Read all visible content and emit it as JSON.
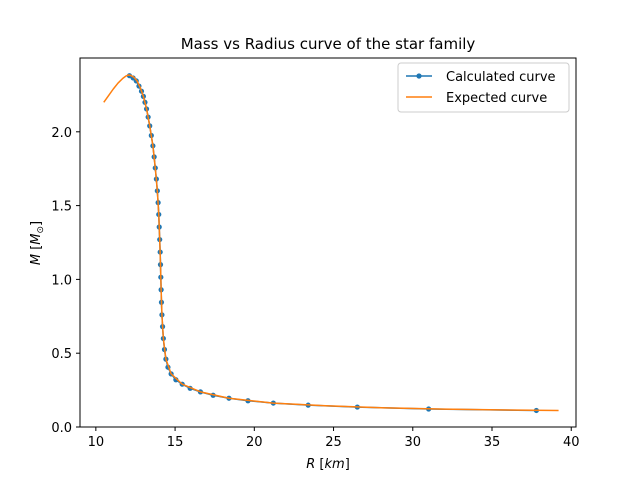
{
  "chart_data": {
    "type": "line",
    "title": "Mass vs Radius curve of the star family",
    "xlabel": "R [km]",
    "xlabel_parts": {
      "var": "R",
      "unit": "km"
    },
    "ylabel": "M [M⊙]",
    "ylabel_parts": {
      "var": "M",
      "unit": "M",
      "sub": "⊙"
    },
    "xlim": [
      9.0,
      40.3
    ],
    "ylim": [
      0.0,
      2.5
    ],
    "xticks": [
      10,
      15,
      20,
      25,
      30,
      35,
      40
    ],
    "yticks": [
      0.0,
      0.5,
      1.0,
      1.5,
      2.0
    ],
    "xtick_labels": [
      "10",
      "15",
      "20",
      "25",
      "30",
      "35",
      "40"
    ],
    "ytick_labels": [
      "0.0",
      "0.5",
      "1.0",
      "1.5",
      "2.0"
    ],
    "grid": false,
    "legend_position": "top-right",
    "series": [
      {
        "name": "Calculated curve",
        "color": "#1f77b4",
        "marker": "circle",
        "points": [
          [
            12.12,
            2.38
          ],
          [
            12.35,
            2.365
          ],
          [
            12.55,
            2.345
          ],
          [
            12.72,
            2.31
          ],
          [
            12.88,
            2.275
          ],
          [
            13.0,
            2.24
          ],
          [
            13.1,
            2.2
          ],
          [
            13.2,
            2.155
          ],
          [
            13.3,
            2.1
          ],
          [
            13.4,
            2.04
          ],
          [
            13.5,
            1.975
          ],
          [
            13.6,
            1.905
          ],
          [
            13.68,
            1.83
          ],
          [
            13.75,
            1.755
          ],
          [
            13.82,
            1.68
          ],
          [
            13.88,
            1.6
          ],
          [
            13.93,
            1.52
          ],
          [
            13.97,
            1.44
          ],
          [
            14.0,
            1.355
          ],
          [
            14.03,
            1.27
          ],
          [
            14.06,
            1.185
          ],
          [
            14.08,
            1.1
          ],
          [
            14.1,
            1.015
          ],
          [
            14.12,
            0.93
          ],
          [
            14.14,
            0.845
          ],
          [
            14.17,
            0.76
          ],
          [
            14.21,
            0.68
          ],
          [
            14.26,
            0.6
          ],
          [
            14.33,
            0.525
          ],
          [
            14.42,
            0.46
          ],
          [
            14.55,
            0.405
          ],
          [
            14.75,
            0.36
          ],
          [
            15.05,
            0.32
          ],
          [
            15.45,
            0.29
          ],
          [
            15.95,
            0.262
          ],
          [
            16.6,
            0.238
          ],
          [
            17.4,
            0.215
          ],
          [
            18.4,
            0.195
          ],
          [
            19.6,
            0.178
          ],
          [
            21.2,
            0.162
          ],
          [
            23.4,
            0.148
          ],
          [
            26.5,
            0.135
          ],
          [
            31.0,
            0.122
          ],
          [
            37.8,
            0.112
          ]
        ]
      },
      {
        "name": "Expected curve",
        "color": "#ff7f0e",
        "marker": "none",
        "points": [
          [
            10.5,
            2.2
          ],
          [
            10.8,
            2.245
          ],
          [
            11.1,
            2.29
          ],
          [
            11.4,
            2.33
          ],
          [
            11.7,
            2.362
          ],
          [
            11.9,
            2.378
          ],
          [
            12.05,
            2.385
          ],
          [
            12.2,
            2.382
          ],
          [
            12.4,
            2.37
          ],
          [
            12.6,
            2.345
          ],
          [
            12.8,
            2.3
          ],
          [
            13.0,
            2.24
          ],
          [
            13.2,
            2.155
          ],
          [
            13.4,
            2.04
          ],
          [
            13.6,
            1.905
          ],
          [
            13.75,
            1.755
          ],
          [
            13.88,
            1.6
          ],
          [
            13.97,
            1.44
          ],
          [
            14.03,
            1.27
          ],
          [
            14.08,
            1.1
          ],
          [
            14.12,
            0.93
          ],
          [
            14.17,
            0.76
          ],
          [
            14.26,
            0.6
          ],
          [
            14.42,
            0.46
          ],
          [
            14.75,
            0.36
          ],
          [
            15.45,
            0.29
          ],
          [
            16.6,
            0.238
          ],
          [
            18.4,
            0.195
          ],
          [
            21.2,
            0.162
          ],
          [
            24.5,
            0.144
          ],
          [
            28.0,
            0.13
          ],
          [
            32.0,
            0.121
          ],
          [
            36.0,
            0.115
          ],
          [
            39.2,
            0.112
          ]
        ]
      }
    ]
  }
}
